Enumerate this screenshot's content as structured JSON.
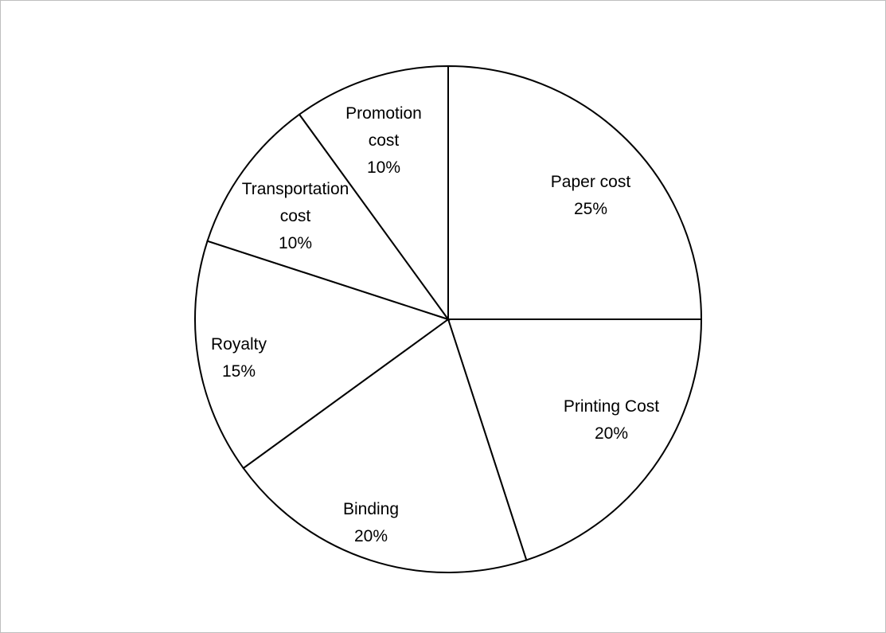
{
  "chart_data": {
    "type": "pie",
    "title": "",
    "slices": [
      {
        "label_lines": [
          "Paper cost"
        ],
        "pct_text": "25%",
        "value": 25
      },
      {
        "label_lines": [
          "Printing Cost"
        ],
        "pct_text": "20%",
        "value": 20
      },
      {
        "label_lines": [
          "Binding"
        ],
        "pct_text": "20%",
        "value": 20
      },
      {
        "label_lines": [
          "Royalty"
        ],
        "pct_text": "15%",
        "value": 15
      },
      {
        "label_lines": [
          "Transportation",
          "cost"
        ],
        "pct_text": "10%",
        "value": 10
      },
      {
        "label_lines": [
          "Promotion",
          "cost"
        ],
        "pct_text": "10%",
        "value": 10
      }
    ],
    "start_angle": "12 o'clock",
    "direction": "clockwise",
    "legend": "none",
    "fill_color": "#ffffff",
    "stroke_color": "#000000"
  }
}
